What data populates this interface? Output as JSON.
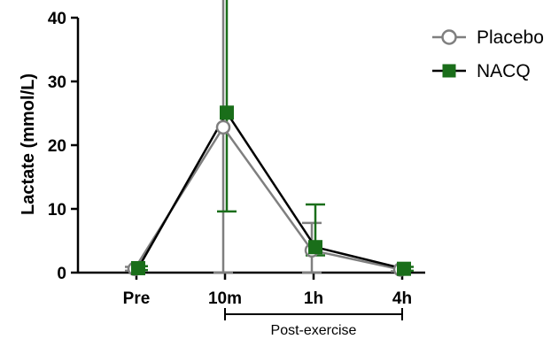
{
  "chart_data": {
    "type": "line",
    "ylabel": "Lactate (mmol/L)",
    "ylim": [
      0,
      40
    ],
    "yticks": [
      0,
      10,
      20,
      30,
      40
    ],
    "categories": [
      "Pre",
      "10m",
      "1h",
      "4h"
    ],
    "bracket": {
      "label": "Post-exercise",
      "from_category": "10m",
      "to_category": "4h"
    },
    "legend_position": "top-right",
    "series": [
      {
        "name": "Placebo",
        "marker": "open-circle",
        "color": "#7f7f7f",
        "values": [
          0.6,
          22.8,
          3.5,
          0.5
        ],
        "error_upper": [
          0.3,
          30.8,
          4.3,
          0.3
        ],
        "error_lower": [
          0.3,
          22.8,
          3.5,
          0.3
        ]
      },
      {
        "name": "NACQ",
        "marker": "filled-square",
        "color": "#1a6e1a",
        "values": [
          0.7,
          25.1,
          4.0,
          0.6
        ],
        "error_upper": [
          0.3,
          34.7,
          6.7,
          0.3
        ],
        "error_lower": [
          0.3,
          15.5,
          1.3,
          0.3
        ]
      }
    ]
  }
}
